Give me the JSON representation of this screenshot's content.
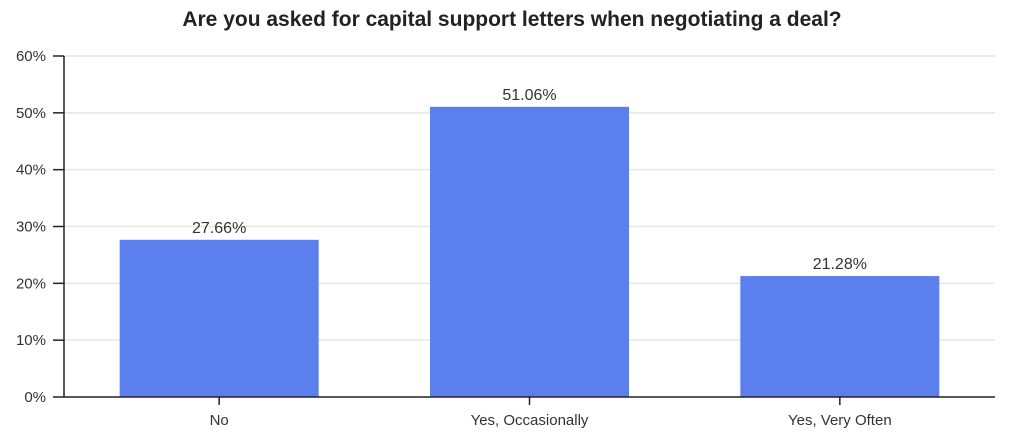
{
  "chart_data": {
    "type": "bar",
    "title": "Are you asked for capital support letters when negotiating a deal?",
    "xlabel": "",
    "ylabel": "",
    "categories": [
      "No",
      "Yes, Occasionally",
      "Yes, Very Often"
    ],
    "values": [
      27.66,
      51.06,
      21.28
    ],
    "data_labels": [
      "27.66%",
      "51.06%",
      "21.28%"
    ],
    "ylim": [
      0,
      60
    ],
    "yticks": [
      0,
      10,
      20,
      30,
      40,
      50,
      60
    ],
    "ytick_labels": [
      "0%",
      "10%",
      "20%",
      "30%",
      "40%",
      "50%",
      "60%"
    ],
    "grid": true,
    "bar_color": "#5b80ee"
  }
}
